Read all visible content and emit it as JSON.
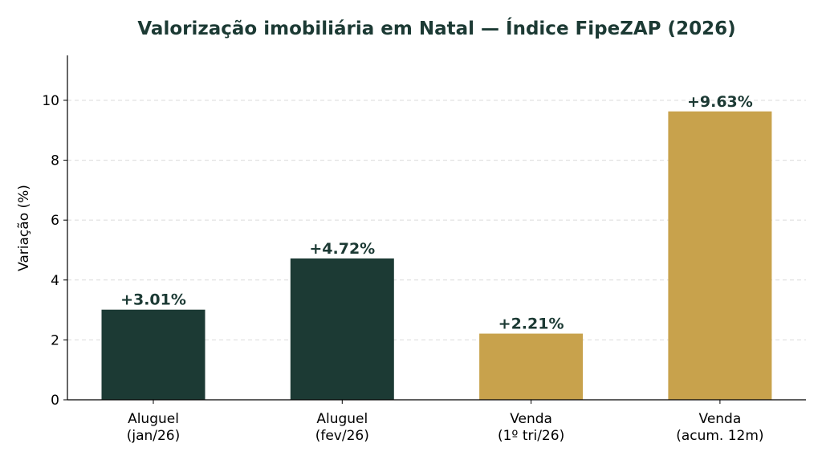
{
  "chart_data": {
    "type": "bar",
    "title": "Valorização imobiliária em Natal — Índice FipeZAP (2026)",
    "xlabel": "",
    "ylabel": "Variação (%)",
    "ylim": [
      0,
      11.5
    ],
    "yticks": [
      "0",
      "2",
      "4",
      "6",
      "8",
      "10"
    ],
    "ytick_values": [
      0,
      2,
      4,
      6,
      8,
      10
    ],
    "grid": "horizontal dashed",
    "categories": [
      [
        "Aluguel",
        "(jan/26)"
      ],
      [
        "Aluguel",
        "(fev/26)"
      ],
      [
        "Venda",
        "(1º tri/26)"
      ],
      [
        "Venda",
        "(acum. 12m)"
      ]
    ],
    "values": [
      3.01,
      4.72,
      2.21,
      9.63
    ],
    "value_labels": [
      "+3.01%",
      "+4.72%",
      "+2.21%",
      "+9.63%"
    ],
    "bar_colors": [
      "#1c3a34",
      "#1c3a34",
      "#c8a24c",
      "#c8a24c"
    ]
  },
  "colors": {
    "title": "#1c3a34",
    "data_label": "#1c3a34"
  }
}
